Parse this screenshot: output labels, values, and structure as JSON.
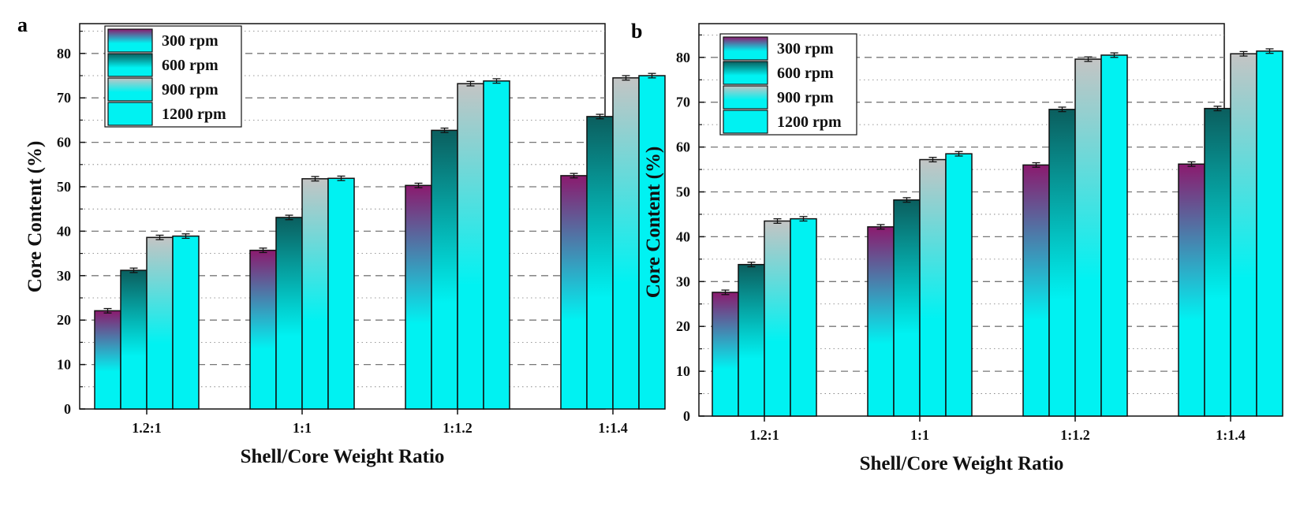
{
  "colors": {
    "rpm300_top": "#8b1a6e",
    "rpm300_bottom": "#00f2f2",
    "rpm600_top": "#0b5e5e",
    "rpm600_bottom": "#00f2f2",
    "rpm900_top": "#c4c4c4",
    "rpm900_bottom": "#00f2f2",
    "rpm1200": "#00f2f2",
    "grid": "#777777"
  },
  "chart_data": [
    {
      "panel": "a",
      "type": "bar",
      "xlabel": "Shell/Core Weight Ratio",
      "ylabel": "Core Content (%)",
      "ylim": [
        0,
        87
      ],
      "yticks": [
        "0",
        "10",
        "20",
        "30",
        "40",
        "50",
        "60",
        "70",
        "80"
      ],
      "categories": [
        "1.2:1",
        "1:1",
        "1:1.2",
        "1:1.4"
      ],
      "legend_position": "top-left",
      "grid": true,
      "series": [
        {
          "name": "300 rpm",
          "values": [
            22.1,
            35.7,
            50.3,
            52.5
          ],
          "errors": [
            0.5,
            0.5,
            0.5,
            0.5
          ]
        },
        {
          "name": "600 rpm",
          "values": [
            31.2,
            43.1,
            62.7,
            65.8
          ],
          "errors": [
            0.5,
            0.5,
            0.5,
            0.5
          ]
        },
        {
          "name": "900 rpm",
          "values": [
            38.6,
            51.8,
            73.2,
            74.5
          ],
          "errors": [
            0.5,
            0.5,
            0.5,
            0.5
          ]
        },
        {
          "name": "1200 rpm",
          "values": [
            38.9,
            51.9,
            73.8,
            75.0
          ],
          "errors": [
            0.5,
            0.5,
            0.5,
            0.5
          ]
        }
      ]
    },
    {
      "panel": "b",
      "type": "bar",
      "xlabel": "Shell/Core Weight Ratio",
      "ylabel": "Core Content (%)",
      "ylim": [
        0,
        87
      ],
      "yticks": [
        "0",
        "10",
        "20",
        "30",
        "40",
        "50",
        "60",
        "70",
        "80"
      ],
      "categories": [
        "1.2:1",
        "1:1",
        "1:1.2",
        "1:1.4"
      ],
      "legend_position": "top-left",
      "grid": true,
      "series": [
        {
          "name": "300 rpm",
          "values": [
            27.6,
            42.2,
            56.0,
            56.2
          ],
          "errors": [
            0.5,
            0.5,
            0.5,
            0.5
          ]
        },
        {
          "name": "600 rpm",
          "values": [
            33.8,
            48.2,
            68.4,
            68.6
          ],
          "errors": [
            0.5,
            0.5,
            0.5,
            0.5
          ]
        },
        {
          "name": "900 rpm",
          "values": [
            43.5,
            57.2,
            79.6,
            80.8
          ],
          "errors": [
            0.5,
            0.5,
            0.5,
            0.5
          ]
        },
        {
          "name": "1200 rpm",
          "values": [
            44.0,
            58.5,
            80.5,
            81.4
          ],
          "errors": [
            0.5,
            0.5,
            0.5,
            0.5
          ]
        }
      ]
    }
  ]
}
